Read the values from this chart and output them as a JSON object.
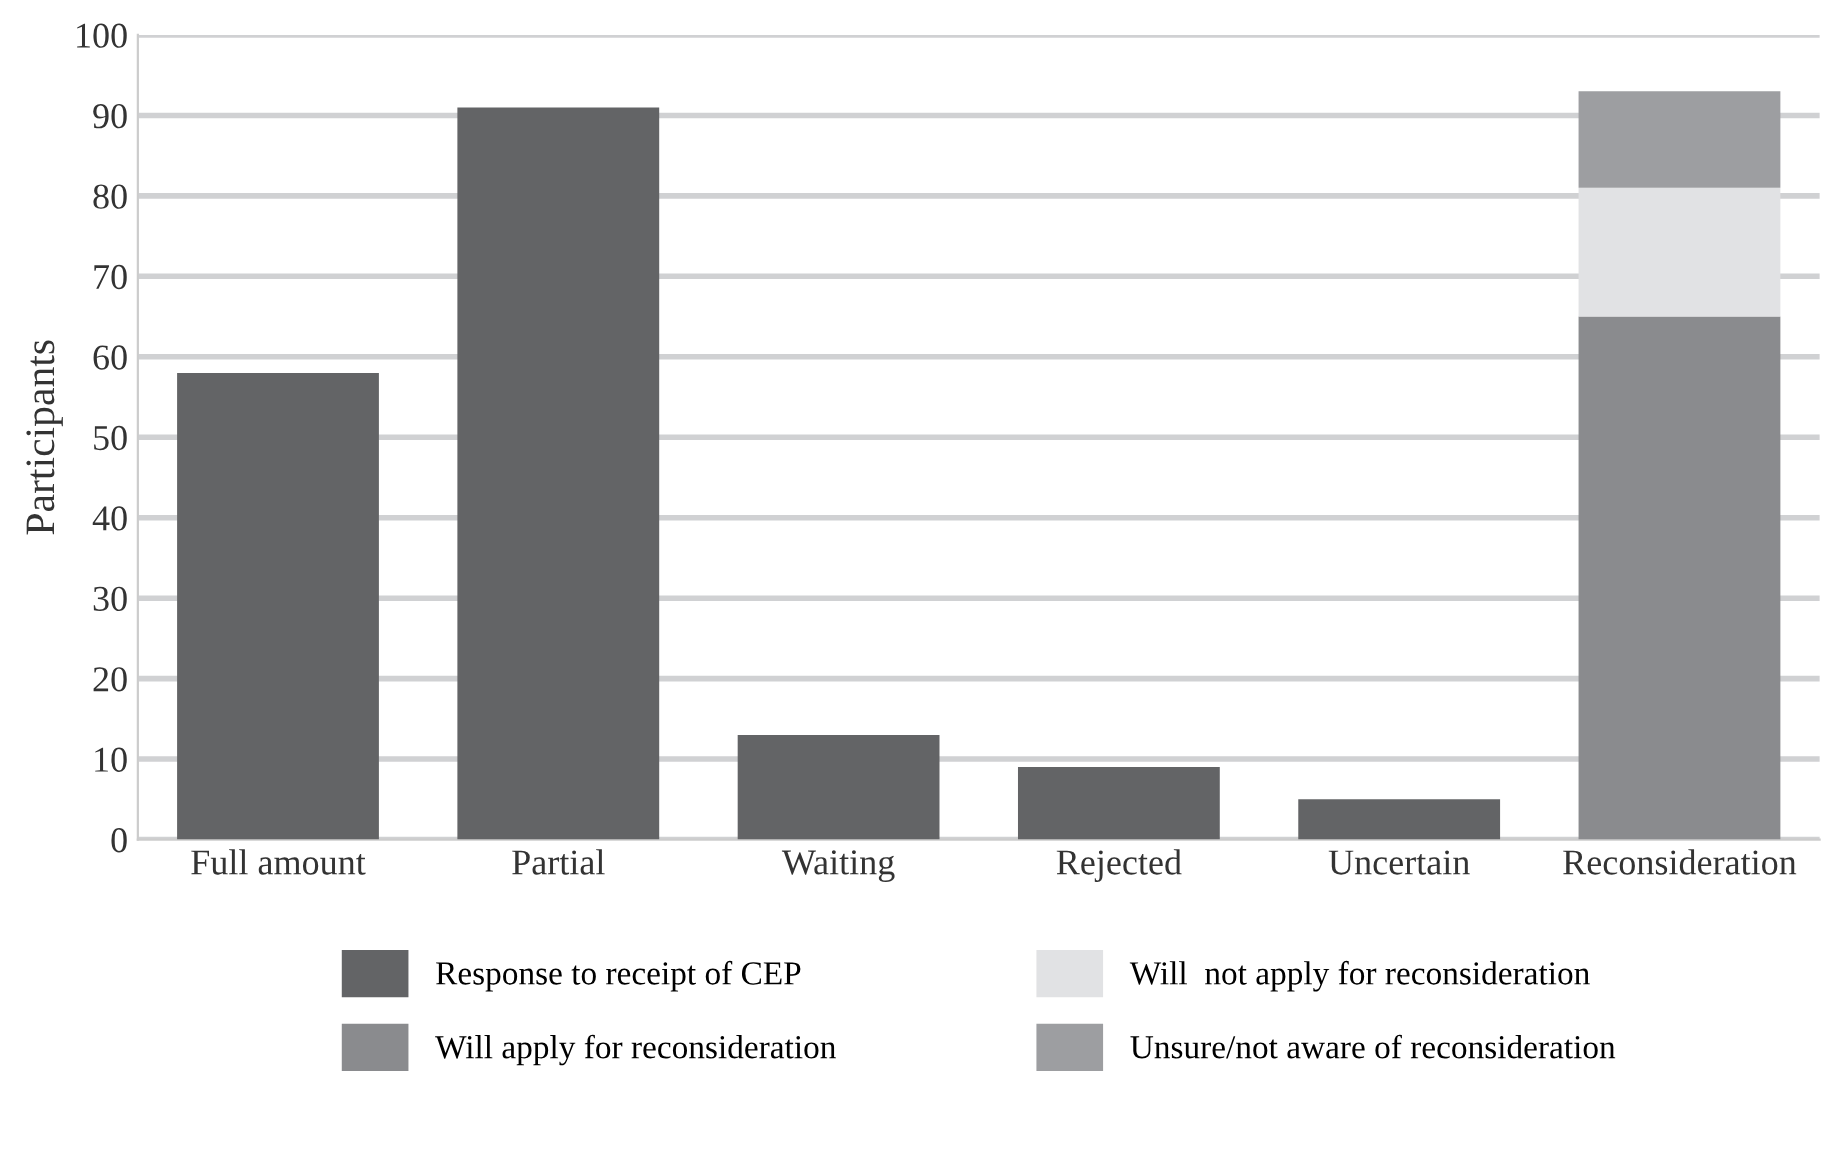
{
  "chart_data": {
    "type": "bar",
    "stacked": true,
    "ylabel": "Participants",
    "categories": [
      "Full amount",
      "Partial",
      "Waiting",
      "Rejected",
      "Uncertain",
      "Reconsideration"
    ],
    "series": [
      {
        "name": "Response to receipt of CEP",
        "color": "#636466",
        "values": [
          58,
          91,
          13,
          9,
          5,
          null
        ]
      },
      {
        "name": "Will apply for reconsideration",
        "color": "#8a8b8e",
        "values": [
          null,
          null,
          null,
          null,
          null,
          65
        ]
      },
      {
        "name": "Will  not apply for reconsideration",
        "color": "#e1e2e4",
        "values": [
          null,
          null,
          null,
          null,
          null,
          16
        ]
      },
      {
        "name": "Unsure/not aware of reconsideration",
        "color": "#9d9ea1",
        "values": [
          null,
          null,
          null,
          null,
          null,
          12
        ]
      }
    ],
    "ylim": [
      0,
      100
    ],
    "yticks": [
      0,
      10,
      20,
      30,
      40,
      50,
      60,
      70,
      80,
      90,
      100
    ],
    "grid": "y",
    "legend": "bottom"
  }
}
